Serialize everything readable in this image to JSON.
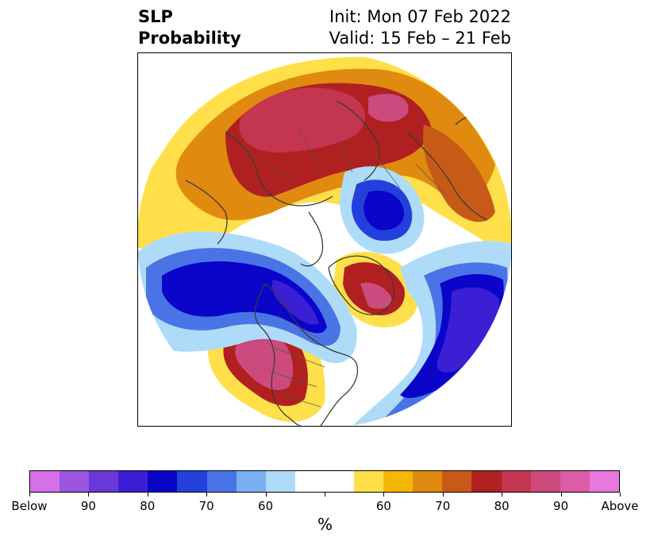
{
  "title": {
    "left_line1": "SLP",
    "left_line2": "Probability",
    "right_line1": "Init: Mon 07 Feb 2022",
    "right_line2": "Valid: 15 Feb – 21 Feb"
  },
  "colorbar": {
    "colors": [
      "#d670e8",
      "#9b55e0",
      "#6a38d8",
      "#3b1fd4",
      "#0a05c8",
      "#2340dc",
      "#4a74e6",
      "#78b0f2",
      "#aedcf8",
      "#ffffff",
      "#ffffff",
      "#ffe04a",
      "#f5b800",
      "#e08a10",
      "#c85a18",
      "#b02020",
      "#c43550",
      "#cc4a7e",
      "#dc5ca8",
      "#e878dc"
    ],
    "tick_labels": [
      "Below",
      "90",
      "80",
      "70",
      "60",
      "",
      "60",
      "70",
      "80",
      "90",
      "Above"
    ],
    "unit_label": "%"
  }
}
